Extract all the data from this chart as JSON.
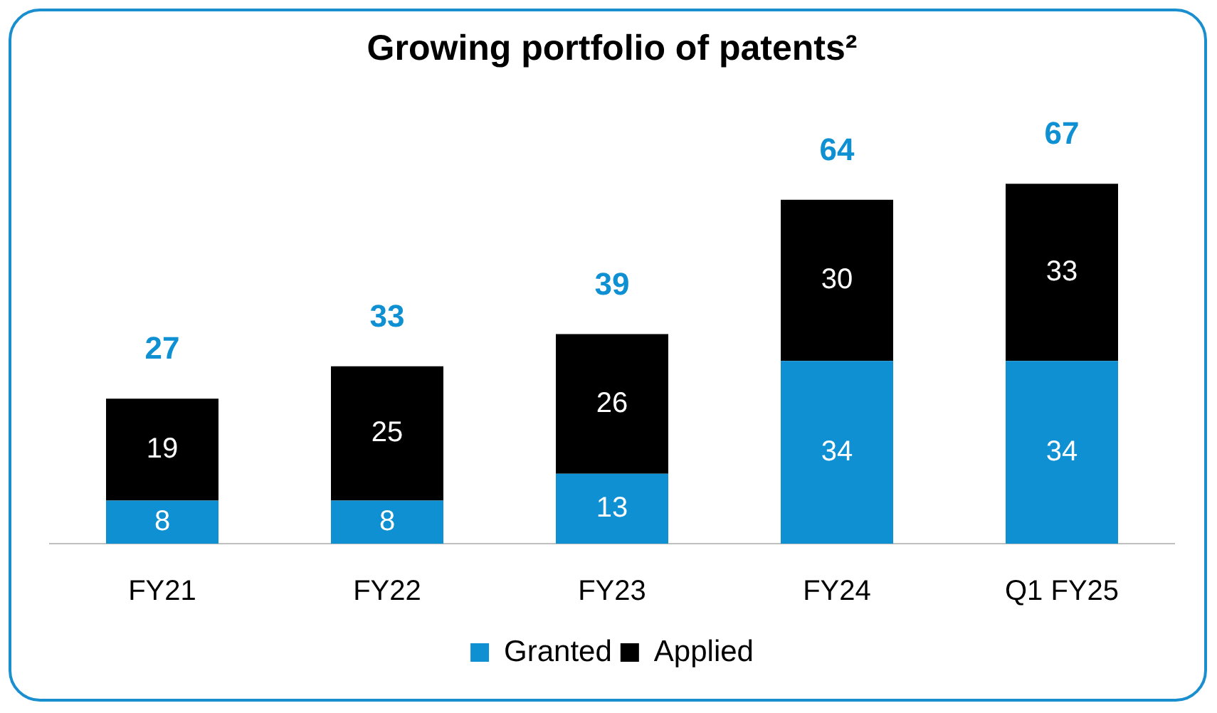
{
  "chart_data": {
    "type": "bar",
    "title": "Growing portfolio of patents²",
    "categories": [
      "FY21",
      "FY22",
      "FY23",
      "FY24",
      "Q1 FY25"
    ],
    "stacked": true,
    "data_labels": true,
    "legend": "bottom",
    "grid": false,
    "tick_labels": "x",
    "series": [
      {
        "name": "Granted",
        "color": "#0e90d2",
        "values": [
          8,
          8,
          13,
          34,
          34
        ]
      },
      {
        "name": "Applied",
        "color": "#000000",
        "values": [
          19,
          25,
          26,
          30,
          33
        ]
      }
    ],
    "totals": [
      "27",
      "33",
      "39",
      "64",
      "67"
    ]
  }
}
